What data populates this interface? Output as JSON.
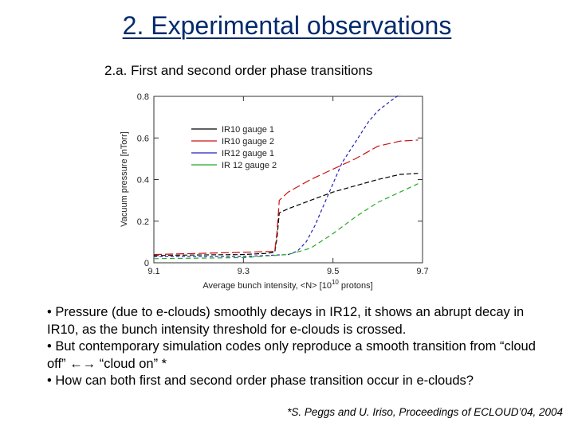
{
  "slide": {
    "title": "2. Experimental observations",
    "subtitle": "2.a. First and second order phase transitions",
    "bullets": [
      "• Pressure (due to e-clouds) smoothly decays in IR12, it shows an abrupt decay in IR10, as the bunch intensity threshold for e-clouds is crossed.",
      "• But contemporary simulation codes only reproduce a smooth transition from “cloud off” ←→ “cloud on” *",
      "• How can both first and second order phase transition occur in e-clouds?"
    ],
    "citation": "*S. Peggs and U. Iriso, Proceedings of ECLOUD’04, 2004"
  },
  "chart_data": {
    "type": "line",
    "xlabel": "Average bunch intensity, <N> [10^10 protons]",
    "ylabel": "Vacuum pressure [nTorr]",
    "xlim": [
      9.1,
      9.7
    ],
    "ylim": [
      0,
      0.8
    ],
    "xticks": [
      "9.1",
      "9.3",
      "9.5",
      "9.7"
    ],
    "yticks": [
      "0",
      "0.2",
      "0.4",
      "0.6",
      "0.8"
    ],
    "grid": false,
    "legend_position": "upper-left",
    "series": [
      {
        "name": "IR10 gauge 1",
        "color": "#000000",
        "dash": "6,3",
        "x": [
          9.1,
          9.2,
          9.3,
          9.35,
          9.37,
          9.375,
          9.38,
          9.4,
          9.45,
          9.5,
          9.55,
          9.6,
          9.65,
          9.69
        ],
        "y": [
          0.035,
          0.038,
          0.04,
          0.045,
          0.05,
          0.12,
          0.24,
          0.26,
          0.3,
          0.34,
          0.37,
          0.4,
          0.425,
          0.43
        ]
      },
      {
        "name": "IR10 gauge 2",
        "color": "#cc1111",
        "dash": "10,4",
        "x": [
          9.1,
          9.2,
          9.3,
          9.37,
          9.375,
          9.38,
          9.4,
          9.45,
          9.5,
          9.55,
          9.6,
          9.65,
          9.69
        ],
        "y": [
          0.04,
          0.045,
          0.05,
          0.055,
          0.15,
          0.3,
          0.34,
          0.4,
          0.45,
          0.5,
          0.56,
          0.585,
          0.59
        ]
      },
      {
        "name": "IR12 gauge 1",
        "color": "#2222bb",
        "dash": "4,3",
        "x": [
          9.1,
          9.3,
          9.4,
          9.42,
          9.44,
          9.46,
          9.48,
          9.5,
          9.52,
          9.55,
          9.58,
          9.6,
          9.63,
          9.65
        ],
        "y": [
          0.03,
          0.03,
          0.04,
          0.055,
          0.1,
          0.18,
          0.28,
          0.38,
          0.48,
          0.58,
          0.68,
          0.73,
          0.78,
          0.81
        ]
      },
      {
        "name": "IR 12 gauge 2",
        "color": "#22aa22",
        "dash": "6,4",
        "x": [
          9.1,
          9.3,
          9.4,
          9.45,
          9.5,
          9.55,
          9.6,
          9.65,
          9.69
        ],
        "y": [
          0.02,
          0.025,
          0.04,
          0.07,
          0.14,
          0.22,
          0.29,
          0.34,
          0.38
        ]
      }
    ]
  }
}
